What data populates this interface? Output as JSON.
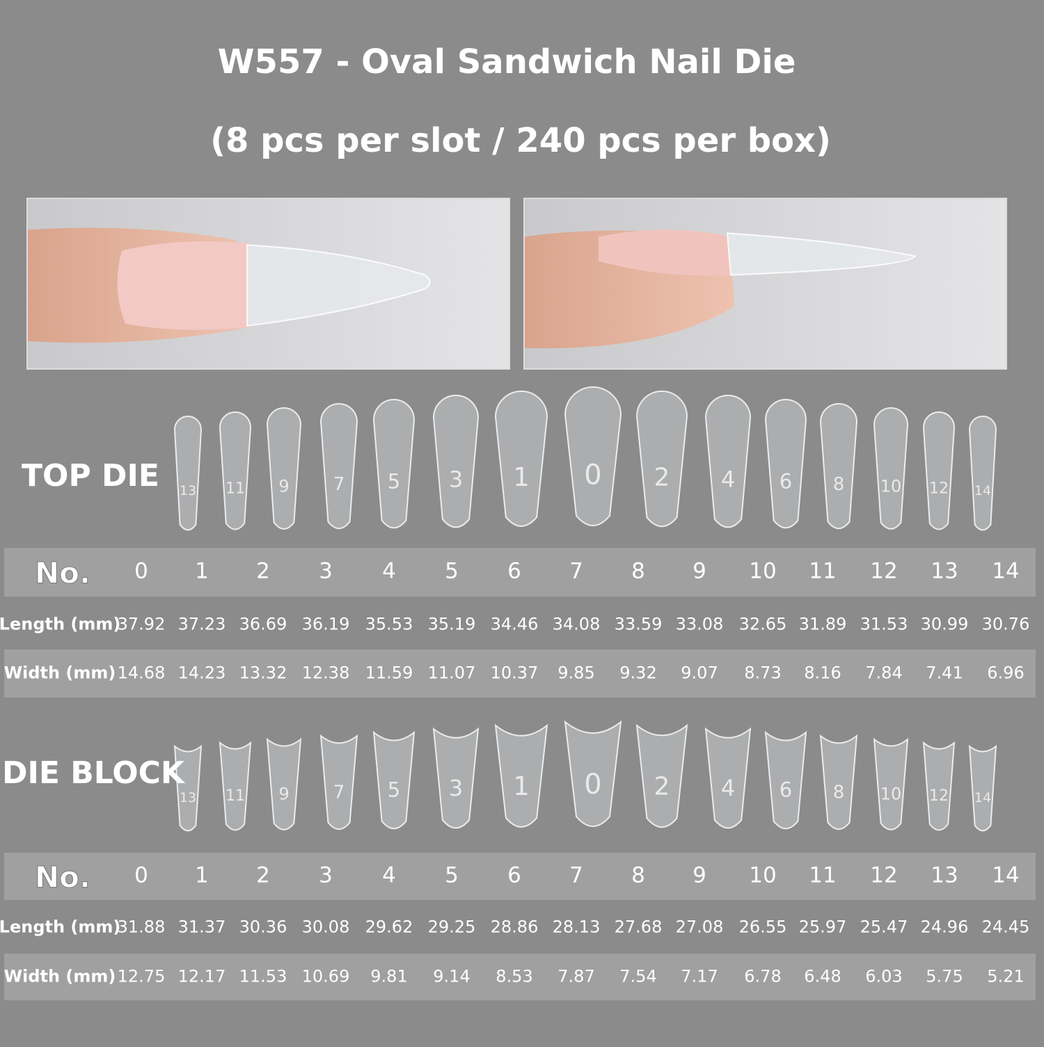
{
  "header": {
    "title": "W557 - Oval Sandwich Nail Die",
    "subtitle": "(8 pcs per slot / 240 pcs per box)"
  },
  "top_die": {
    "label": "TOP DIE",
    "nail_labels": [
      "13",
      "11",
      "9",
      "7",
      "5",
      "3",
      "1",
      "0",
      "2",
      "4",
      "6",
      "8",
      "10",
      "12",
      "14"
    ],
    "table": {
      "rows": [
        [
          "No.",
          "0",
          "1",
          "2",
          "3",
          "4",
          "5",
          "6",
          "7",
          "8",
          "9",
          "10",
          "11",
          "12",
          "13",
          "14"
        ],
        [
          "Length (mm)",
          "37.92",
          "37.23",
          "36.69",
          "36.19",
          "35.53",
          "35.19",
          "34.46",
          "34.08",
          "33.59",
          "33.08",
          "32.65",
          "31.89",
          "31.53",
          "30.99",
          "30.76"
        ],
        [
          "Width (mm)",
          "14.68",
          "14.23",
          "13.32",
          "12.38",
          "11.59",
          "11.07",
          "10.37",
          "9.85",
          "9.32",
          "9.07",
          "8.73",
          "8.16",
          "7.84",
          "7.41",
          "6.96"
        ]
      ]
    }
  },
  "die_block": {
    "label": "DIE BLOCK",
    "nail_labels": [
      "13",
      "11",
      "9",
      "7",
      "5",
      "3",
      "1",
      "0",
      "2",
      "4",
      "6",
      "8",
      "10",
      "12",
      "14"
    ],
    "table": {
      "rows": [
        [
          "No.",
          "0",
          "1",
          "2",
          "3",
          "4",
          "5",
          "6",
          "7",
          "8",
          "9",
          "10",
          "11",
          "12",
          "13",
          "14"
        ],
        [
          "Length (mm)",
          "31.88",
          "31.37",
          "30.36",
          "30.08",
          "29.62",
          "29.25",
          "28.86",
          "28.13",
          "27.68",
          "27.08",
          "26.55",
          "25.97",
          "25.47",
          "24.96",
          "24.45"
        ],
        [
          "Width (mm)",
          "12.75",
          "12.17",
          "11.53",
          "10.69",
          "9.81",
          "9.14",
          "8.53",
          "7.87",
          "7.54",
          "7.17",
          "6.78",
          "6.48",
          "6.03",
          "5.75",
          "5.21"
        ]
      ]
    }
  }
}
